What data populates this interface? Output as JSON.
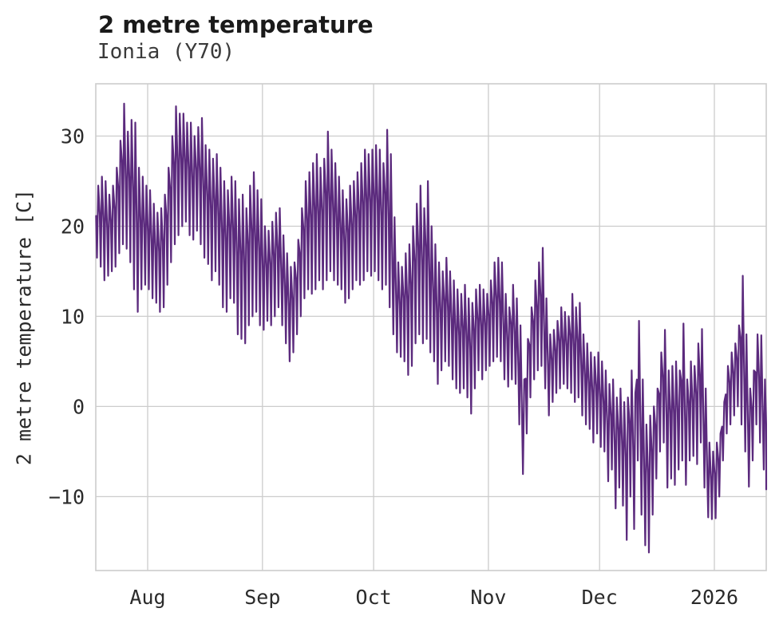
{
  "header": {
    "title": "2 metre temperature",
    "subtitle": "Ionia (Y70)"
  },
  "chart_data": {
    "type": "line",
    "title": "2 metre temperature",
    "subtitle": "Ionia (Y70)",
    "xlabel": "",
    "ylabel": "2 metre temperature [C]",
    "background_color": "#ffffff",
    "line_color": "#5b2a7d",
    "grid_color": "#cccccc",
    "text_color": "#2b2b2b",
    "grid": true,
    "frame": true,
    "legend": false,
    "ylim": [
      -18.2,
      35.8
    ],
    "yticks": [
      {
        "v": -10,
        "label": "−10"
      },
      {
        "v": 0,
        "label": "0"
      },
      {
        "v": 10,
        "label": "10"
      },
      {
        "v": 20,
        "label": "20"
      },
      {
        "v": 30,
        "label": "30"
      }
    ],
    "x_span_days": 181,
    "xticks": [
      {
        "day": 14,
        "label": "Aug"
      },
      {
        "day": 45,
        "label": "Sep"
      },
      {
        "day": 75,
        "label": "Oct"
      },
      {
        "day": 106,
        "label": "Nov"
      },
      {
        "day": 136,
        "label": "Dec"
      },
      {
        "day": 167,
        "label": "2026"
      }
    ],
    "series_name": "2 metre temperature",
    "units": "C",
    "sampling": "daily min/max envelope, day 0 = first plotted day (mid-July), 182 days total",
    "daily": {
      "min": [
        16.5,
        15.5,
        14,
        14.5,
        15,
        15.5,
        17,
        18,
        17.5,
        16,
        13,
        10.5,
        13,
        13.5,
        13,
        12,
        11.5,
        10.5,
        11,
        13.5,
        16,
        18,
        19,
        20,
        20.5,
        19,
        18.5,
        19.5,
        18,
        16.5,
        15.8,
        14,
        15,
        13.5,
        11,
        10.5,
        12,
        11.5,
        8,
        7.5,
        7,
        9,
        10,
        10.5,
        9,
        8.5,
        9.5,
        9,
        10,
        11,
        9,
        7,
        5,
        6,
        8,
        10,
        12,
        13,
        12.5,
        13,
        14,
        13,
        14,
        15,
        14,
        13.5,
        13,
        11.5,
        12,
        13,
        14,
        13.5,
        14,
        15,
        14.5,
        15,
        14,
        13,
        13.5,
        11,
        8,
        6,
        5.5,
        5,
        3.5,
        4.5,
        7,
        8,
        7,
        7.5,
        6,
        5,
        2.5,
        4,
        5,
        4.5,
        3,
        2,
        1.5,
        2,
        1,
        -0.8,
        2,
        4,
        3,
        4,
        4.5,
        5,
        5.5,
        5,
        3,
        2.2,
        3,
        2.5,
        -2,
        -7.5,
        -3,
        1,
        3,
        4,
        4.5,
        2,
        -1,
        0.5,
        1.5,
        2,
        2.5,
        2,
        1.5,
        0.5,
        1,
        -1,
        -2,
        -2.5,
        -4,
        -3,
        -4.5,
        -5,
        -8.3,
        -7,
        -11.3,
        -9,
        -11,
        -14.8,
        -10,
        -13.6,
        -6,
        -12,
        -15.4,
        -16.2,
        -12,
        -8,
        -5,
        -4,
        -9,
        -8,
        -8.7,
        -7,
        -6,
        -8.7,
        -6,
        -5.5,
        -6.4,
        -4,
        -9,
        -12.3,
        -12.5,
        -12.4,
        -10,
        -6,
        -3,
        -2,
        -1,
        0,
        -2,
        -5,
        -8.9,
        -6,
        -2,
        -4,
        -7,
        -9.2
      ],
      "max": [
        24.5,
        25.5,
        25,
        23.5,
        24.5,
        26.5,
        29.5,
        33.6,
        30.5,
        31.8,
        31.5,
        26.5,
        25.5,
        24.5,
        24,
        22.5,
        21.5,
        22,
        23.5,
        26.5,
        30,
        33.3,
        32.5,
        32.5,
        31.5,
        31.5,
        30,
        31,
        32,
        29,
        28.5,
        27.5,
        28,
        26.5,
        25,
        24,
        25.5,
        25,
        23,
        23.5,
        22,
        24.5,
        26,
        24,
        23,
        20,
        19.5,
        20.5,
        21.5,
        22,
        19,
        17,
        15.5,
        16,
        18.5,
        22,
        25,
        26,
        27,
        28,
        26.5,
        27.5,
        30.5,
        28.5,
        27,
        25.5,
        24,
        23,
        24.5,
        25,
        26,
        27,
        28.5,
        28,
        28.5,
        29,
        28.5,
        27,
        30.7,
        28,
        21,
        16,
        15.5,
        17,
        18,
        20,
        22.5,
        24.5,
        22,
        25,
        20,
        18,
        16,
        15,
        16.5,
        15,
        14,
        13,
        12.5,
        13.5,
        12,
        11.5,
        13,
        13.5,
        13,
        12.5,
        14,
        16,
        16.5,
        16,
        12.5,
        11,
        13.5,
        12,
        9,
        3,
        7.5,
        11,
        14,
        16,
        17.6,
        12,
        8,
        8.5,
        9.5,
        11,
        10.5,
        10,
        12.5,
        11,
        11.5,
        8,
        7,
        6,
        5.5,
        6,
        5,
        4,
        2.5,
        3,
        1,
        2,
        0.5,
        1,
        4,
        1.5,
        9.5,
        3,
        -2,
        -1,
        0,
        2,
        6,
        8.5,
        4,
        4.5,
        5,
        4,
        9.2,
        3,
        5,
        4.5,
        7,
        8.6,
        2,
        -4,
        -5,
        -4,
        -3,
        0.5,
        4.5,
        6,
        7,
        9,
        14.5,
        8,
        2,
        4,
        8,
        7.9,
        3,
        0.5
      ]
    }
  }
}
